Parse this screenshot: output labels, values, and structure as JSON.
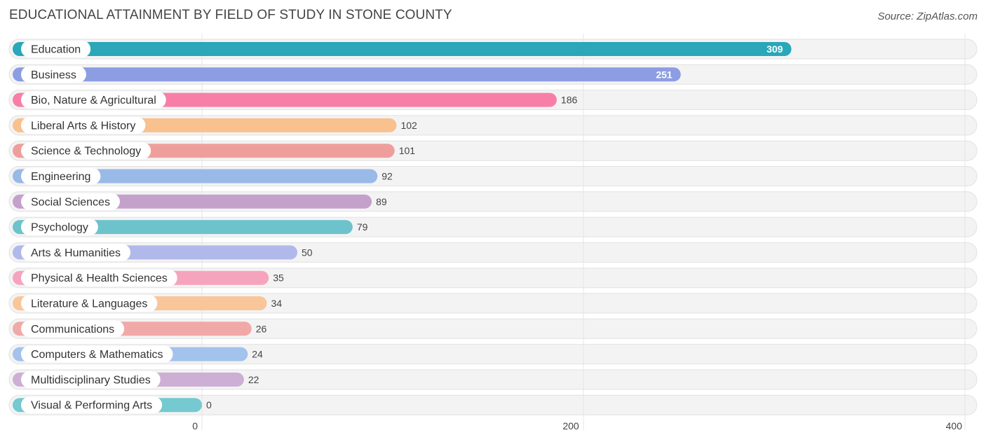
{
  "header": {
    "title": "EDUCATIONAL ATTAINMENT BY FIELD OF STUDY IN STONE COUNTY",
    "source": "Source: ZipAtlas.com"
  },
  "chart_data": {
    "type": "bar",
    "orientation": "horizontal",
    "title": "EDUCATIONAL ATTAINMENT BY FIELD OF STUDY IN STONE COUNTY",
    "categories": [
      "Education",
      "Business",
      "Bio, Nature & Agricultural",
      "Liberal Arts & History",
      "Science & Technology",
      "Engineering",
      "Social Sciences",
      "Psychology",
      "Arts & Humanities",
      "Physical & Health Sciences",
      "Literature & Languages",
      "Communications",
      "Computers & Mathematics",
      "Multidisciplinary Studies",
      "Visual & Performing Arts"
    ],
    "values": [
      309,
      251,
      186,
      102,
      101,
      92,
      89,
      79,
      50,
      35,
      34,
      26,
      24,
      22,
      0
    ],
    "colors": [
      "#2aa7b8",
      "#8c9de3",
      "#f77fa7",
      "#f9c18e",
      "#ee9f9c",
      "#99b9e6",
      "#c4a1cb",
      "#6dc3cb",
      "#b1b8ea",
      "#f6a4be",
      "#f9c69a",
      "#f0a9a7",
      "#a3c2ec",
      "#cdaed4",
      "#75c9d0"
    ],
    "xlim": [
      0,
      400
    ],
    "xticks": [
      0,
      200,
      400
    ],
    "xtick_labels": [
      "0",
      "200",
      "400"
    ],
    "grid": true
  }
}
